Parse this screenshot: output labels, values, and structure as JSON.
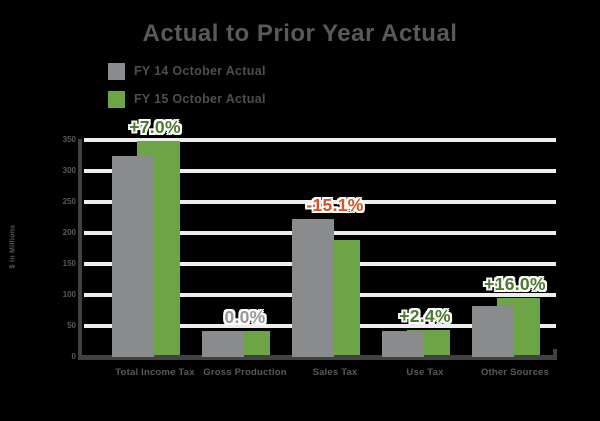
{
  "title": "Actual to Prior Year Actual",
  "legend": {
    "items": [
      {
        "label": "FY 14 October Actual",
        "color": "#8a8b8d"
      },
      {
        "label": "FY 15 October Actual",
        "color": "#6da546"
      }
    ]
  },
  "colors": {
    "background": "#000000",
    "title_text": "#58595b",
    "axis_line": "#414042",
    "gridline": "#ededed",
    "bar_gray": "#8a8b8d",
    "bar_green": "#6da546",
    "pct_green": "#4c7a2d",
    "pct_gray": "#98989a",
    "pct_orange": "#d9541f"
  },
  "chart_data": {
    "type": "bar",
    "title": "Actual to Prior Year Actual",
    "categories": [
      "Total Income Tax",
      "Gross Production",
      "Sales Tax",
      "Use Tax",
      "Other Sources"
    ],
    "series": [
      {
        "name": "FY 14 October Actual",
        "color": "#8a8b8d",
        "values": [
          325,
          42,
          222,
          42,
          82
        ]
      },
      {
        "name": "FY 15 October Actual",
        "color": "#6da546",
        "values": [
          348,
          42,
          188,
          43,
          95
        ]
      }
    ],
    "change_labels": [
      {
        "text": "+7.0%",
        "color": "#4c7a2d"
      },
      {
        "text": "0.0%",
        "color": "#98989a"
      },
      {
        "text": "-15.1%",
        "color": "#d9541f"
      },
      {
        "text": "+2.4%",
        "color": "#4c7a2d"
      },
      {
        "text": "+16.0%",
        "color": "#4c7a2d"
      }
    ],
    "xlabel": "",
    "ylabel": "$ in Millions",
    "yticks": [
      0,
      50,
      100,
      150,
      200,
      250,
      300,
      350
    ],
    "ylim": [
      0,
      350
    ],
    "grid": true,
    "legend_position": "top-left"
  }
}
